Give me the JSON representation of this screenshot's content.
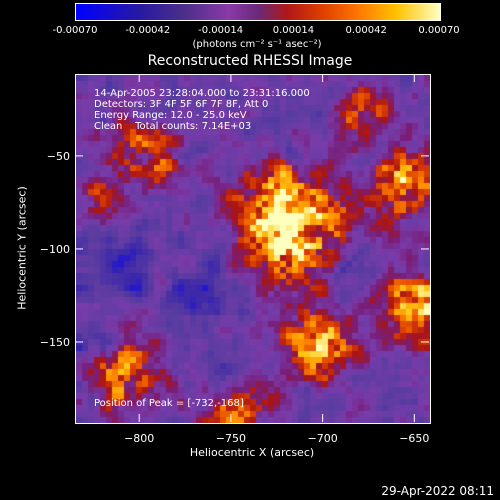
{
  "chart_data": {
    "type": "heatmap",
    "title": "Reconstructed RHESSI Image",
    "xlabel": "Heliocentric X (arcsec)",
    "ylabel": "Heliocentric Y (arcsec)",
    "xlim": [
      -835,
      -642
    ],
    "ylim": [
      -193,
      -6
    ],
    "x_ticks": [
      -800,
      -750,
      -700,
      -650
    ],
    "y_ticks": [
      -50,
      -100,
      -150
    ],
    "colorbar": {
      "range": [
        -0.0007,
        0.0007
      ],
      "tick_labels": [
        "-0.00070",
        "-0.00042",
        "-0.00014",
        "0.00014",
        "0.00042",
        "0.00070"
      ],
      "unit_label": "(photons cm⁻² s⁻¹ asec⁻²)"
    },
    "annotations": {
      "time": "14-Apr-2005 23:28:04.000 to 23:31:16.000",
      "detectors": "Detectors: 3F 4F 5F 6F 7F 8F, Att 0",
      "energy": "Energy Range: 12.0 - 25.0 keV",
      "clean": "Clean    Total counts: 7.14E+03",
      "peak": "Position of Peak = [-732,-168]"
    },
    "peak": [
      -732,
      -168
    ]
  },
  "footer": {
    "timestamp": "29-Apr-2022 08:11"
  }
}
